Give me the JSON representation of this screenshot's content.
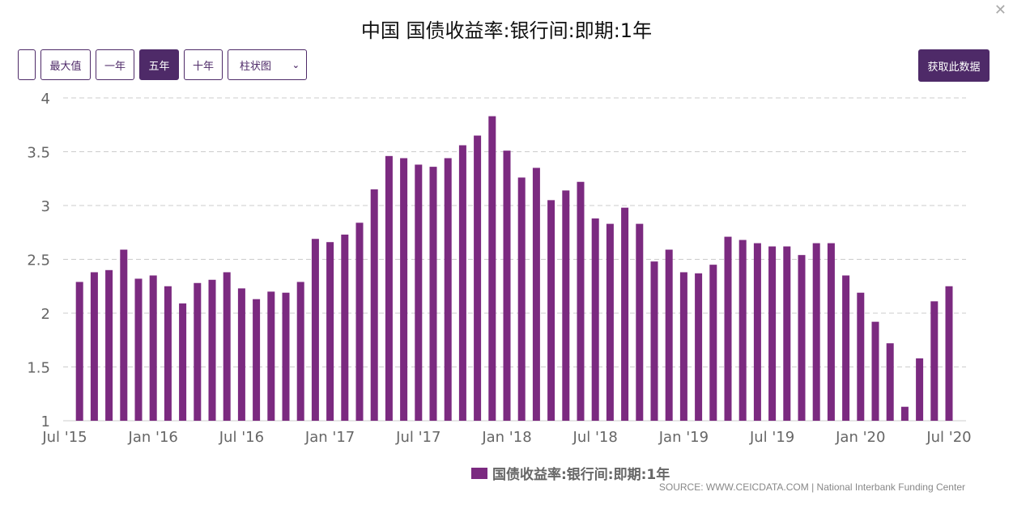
{
  "title": "中国 国债收益率:银行间:即期:1年",
  "controls": {
    "blank": "",
    "max": "最大值",
    "one_year": "一年",
    "five_year": "五年",
    "ten_year": "十年",
    "chart_type": "柱状图",
    "get_data": "获取此数据"
  },
  "colors": {
    "accent": "#4e2a68",
    "bar": "#7b2a80"
  },
  "chart_data": {
    "type": "bar",
    "title": "中国 国债收益率:银行间:即期:1年",
    "xlabel": "",
    "ylabel": "",
    "ylim": [
      1,
      4
    ],
    "yticks": [
      "1",
      "1.5",
      "2",
      "2.5",
      "3",
      "3.5",
      "4"
    ],
    "xticks": [
      {
        "label": "Jul '15",
        "index": 0
      },
      {
        "label": "Jan '16",
        "index": 6
      },
      {
        "label": "Jul '16",
        "index": 12
      },
      {
        "label": "Jan '17",
        "index": 18
      },
      {
        "label": "Jul '17",
        "index": 24
      },
      {
        "label": "Jan '18",
        "index": 30
      },
      {
        "label": "Jul '18",
        "index": 36
      },
      {
        "label": "Jan '19",
        "index": 42
      },
      {
        "label": "Jul '19",
        "index": 48
      },
      {
        "label": "Jan '20",
        "index": 54
      },
      {
        "label": "Jul '20",
        "index": 60
      }
    ],
    "start": "Aug 2015",
    "end": "Jul 2020",
    "frequency": "monthly",
    "values": [
      2.29,
      2.38,
      2.4,
      2.59,
      2.32,
      2.35,
      2.25,
      2.09,
      2.28,
      2.31,
      2.38,
      2.23,
      2.13,
      2.2,
      2.19,
      2.29,
      2.69,
      2.66,
      2.73,
      2.84,
      3.15,
      3.46,
      3.44,
      3.38,
      3.36,
      3.44,
      3.56,
      3.65,
      3.83,
      3.51,
      3.26,
      3.35,
      3.05,
      3.14,
      3.22,
      2.88,
      2.83,
      2.98,
      2.83,
      2.48,
      2.59,
      2.38,
      2.37,
      2.45,
      2.71,
      2.68,
      2.65,
      2.62,
      2.62,
      2.54,
      2.65,
      2.65,
      2.35,
      2.19,
      1.92,
      1.72,
      1.13,
      1.58,
      2.11,
      2.25
    ],
    "legend": "国债收益率:银行间:即期:1年",
    "legend_position": "bottom",
    "grid": true,
    "source": "SOURCE: WWW.CEICDATA.COM | National Interbank Funding Center"
  }
}
